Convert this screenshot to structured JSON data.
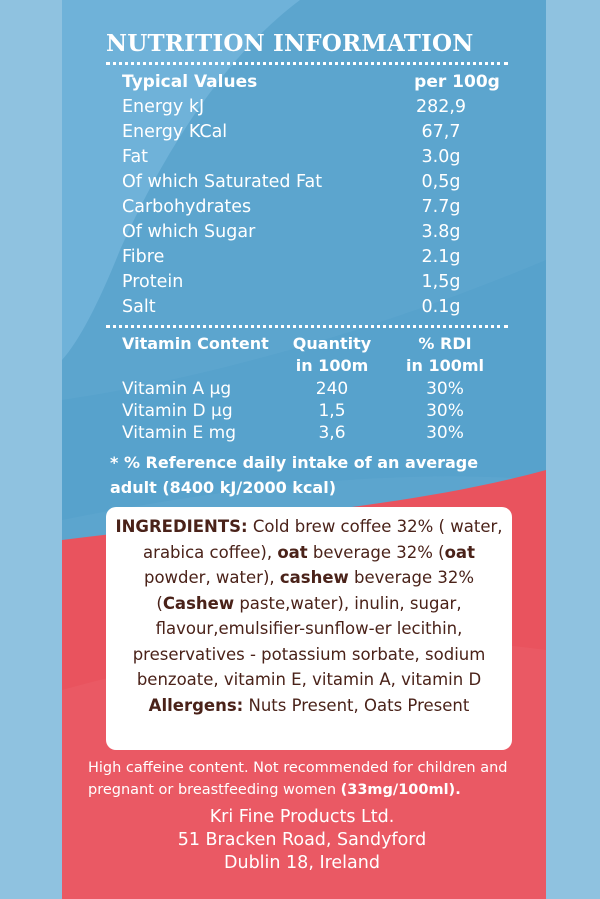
{
  "colors": {
    "blue": "#5fa6cf",
    "red": "#e9535e",
    "brown": "#4a2219"
  },
  "title": "NUTRITION INFORMATION",
  "nutrition": {
    "header": {
      "name": "Typical Values",
      "value": "per 100g"
    },
    "rows": [
      {
        "name": "Energy kJ",
        "value": "282,9"
      },
      {
        "name": "Energy KCal",
        "value": "67,7"
      },
      {
        "name": "Fat",
        "value": "3.0g"
      },
      {
        "name": "Of which Saturated Fat",
        "value": "0,5g"
      },
      {
        "name": "Carbohydrates",
        "value": "7.7g"
      },
      {
        "name": "Of which Sugar",
        "value": "3.8g"
      },
      {
        "name": "Fibre",
        "value": "2.1g"
      },
      {
        "name": "Protein",
        "value": "1,5g"
      },
      {
        "name": "Salt",
        "value": "0.1g"
      }
    ]
  },
  "vitamins": {
    "header": {
      "name": "Vitamin Content",
      "qty1": "Quantity",
      "qty2": "in 100m",
      "rdi1": "% RDI",
      "rdi2": "in 100ml"
    },
    "rows": [
      {
        "name": "Vitamin A µg",
        "qty": "240",
        "rdi": "30%"
      },
      {
        "name": "Vitamin D µg",
        "qty": "1,5",
        "rdi": "30%"
      },
      {
        "name": "Vitamin E mg",
        "qty": "3,6",
        "rdi": "30%"
      }
    ]
  },
  "footnote": "* % Reference daily intake of an average adult (8400 kJ/2000 kcal)",
  "ingredients": {
    "label": "INGREDIENTS:",
    "p1": " Cold brew coffee 32% ( water, arabica coffee), ",
    "oat1": "oat",
    "p2": " beverage 32% (",
    "oat2": "oat",
    "p3": " powder, water), ",
    "cashew1": "cashew",
    "p4": " beverage 32% (",
    "cashew2": "Cashew",
    "p5": " paste,water), inulin, sugar, flavour,emulsifier-sunflow-er lecithin, preservatives - potassium sorbate, sodium benzoate, vitamin E, vitamin A, vitamin D",
    "allergens_label": "Allergens:",
    "allergens_text": " Nuts Present, Oats Present"
  },
  "warning": {
    "text": "High caffeine content. Not recommended for children and pregnant or breastfeeding women ",
    "bold": "(33mg/100ml)."
  },
  "address": {
    "line1": "Kri Fine Products Ltd.",
    "line2": "51 Bracken Road, Sandyford",
    "line3": "Dublin 18, Ireland"
  }
}
